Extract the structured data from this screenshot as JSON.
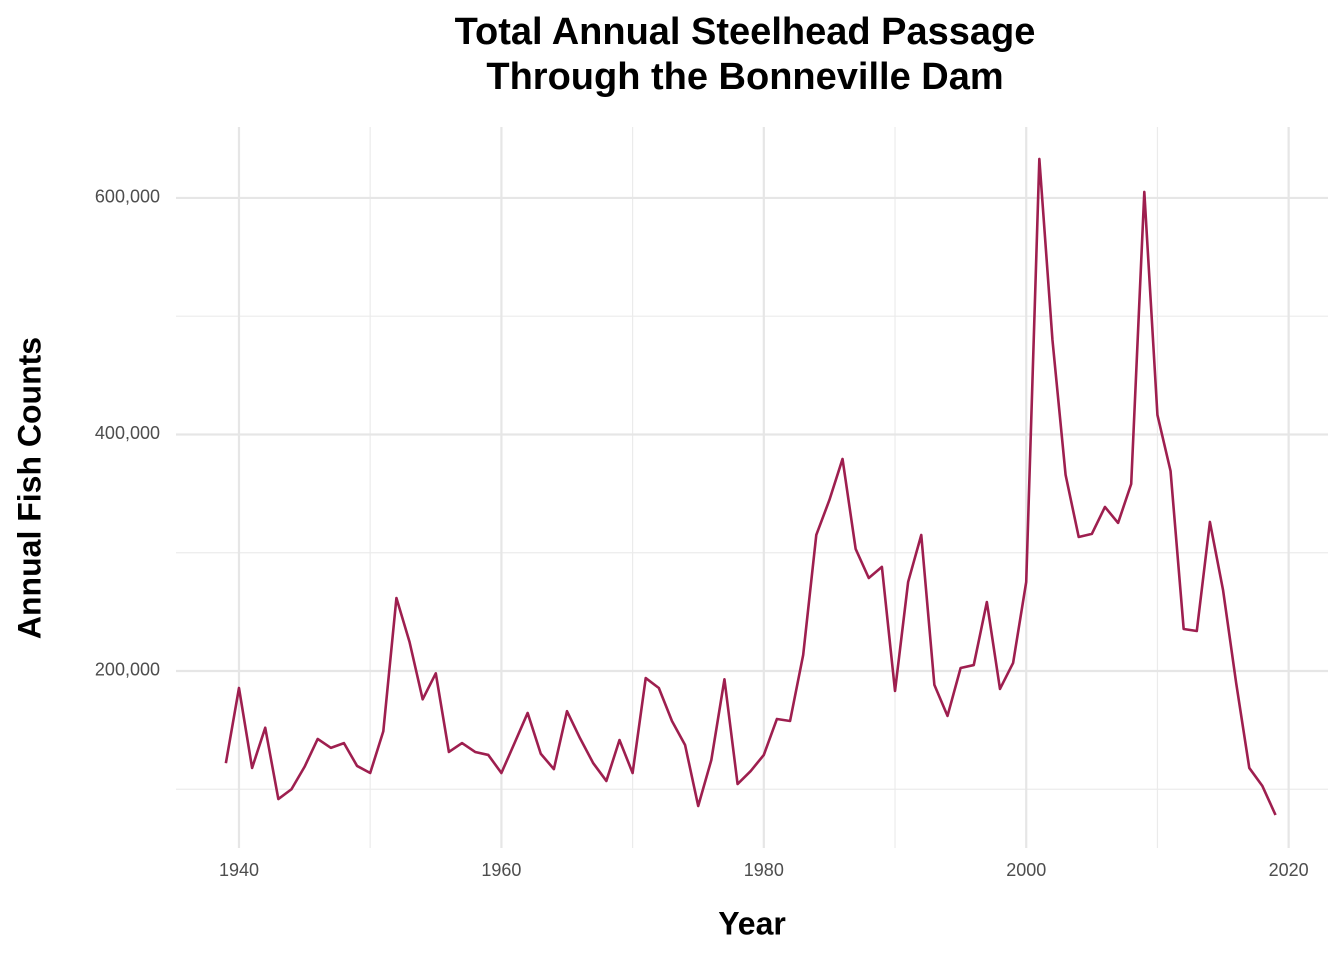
{
  "chart_data": {
    "type": "line",
    "title": "Total Annual Steelhead Passage\nThrough the Bonneville Dam",
    "x_label": "Year",
    "y_label": "Annual Fish Counts",
    "x": [
      1939,
      1940,
      1941,
      1942,
      1943,
      1944,
      1945,
      1946,
      1947,
      1948,
      1949,
      1950,
      1951,
      1952,
      1953,
      1954,
      1955,
      1956,
      1957,
      1958,
      1959,
      1960,
      1961,
      1962,
      1963,
      1964,
      1965,
      1966,
      1967,
      1968,
      1969,
      1970,
      1971,
      1972,
      1973,
      1974,
      1975,
      1976,
      1977,
      1978,
      1979,
      1980,
      1981,
      1982,
      1983,
      1984,
      1985,
      1986,
      1987,
      1988,
      1989,
      1990,
      1991,
      1992,
      1993,
      1994,
      1995,
      1996,
      1997,
      1998,
      1999,
      2000,
      2001,
      2002,
      2003,
      2004,
      2005,
      2006,
      2007,
      2008,
      2009,
      2010,
      2011,
      2012,
      2013,
      2014,
      2015,
      2016,
      2017,
      2018,
      2019
    ],
    "values": [
      122000,
      185600,
      118000,
      152000,
      91700,
      100000,
      119000,
      142500,
      135000,
      139000,
      119700,
      113700,
      149000,
      261700,
      224500,
      176000,
      198000,
      131500,
      139000,
      131500,
      129000,
      113700,
      139000,
      164500,
      130000,
      117000,
      166000,
      143000,
      122000,
      107000,
      141600,
      113700,
      194000,
      185600,
      157700,
      137400,
      85800,
      124700,
      193000,
      104400,
      115400,
      129000,
      159400,
      157700,
      213500,
      315000,
      344600,
      379300,
      303200,
      278600,
      288000,
      183100,
      275300,
      315000,
      188200,
      162000,
      202500,
      205000,
      258300,
      184800,
      206800,
      275300,
      633000,
      479900,
      365800,
      313300,
      315900,
      338700,
      325200,
      358100,
      605100,
      416500,
      369100,
      235500,
      233800,
      326000,
      268500,
      189900,
      118000,
      102700,
      78200
    ],
    "color": "#9e1f4f",
    "xlim": [
      1935.2,
      2023
    ],
    "xticks": [
      1940,
      1960,
      1980,
      2000,
      2020
    ],
    "xminor": [
      1950,
      1970,
      1990,
      2010
    ],
    "ylim": [
      50300,
      660000
    ],
    "yticks": [
      {
        "value": 200000,
        "label": "200,000"
      },
      {
        "value": 400000,
        "label": "400,000"
      },
      {
        "value": 600000,
        "label": "600,000"
      }
    ],
    "yminor": [
      100000,
      300000,
      500000
    ],
    "grid": true
  }
}
